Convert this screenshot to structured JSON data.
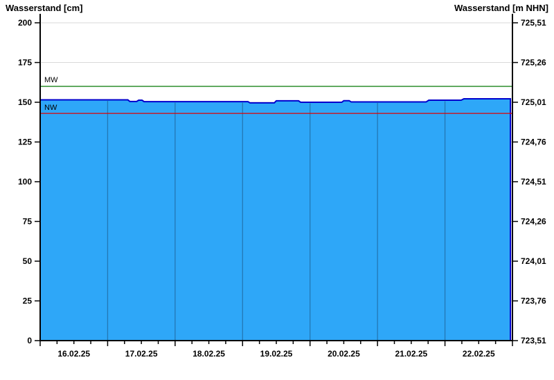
{
  "chart_data": {
    "type": "area",
    "title_left": "Wasserstand [cm]",
    "title_right": "Wasserstand [m NHN]",
    "y_left": {
      "min": 0,
      "max": 200,
      "ticks": [
        200,
        175,
        150,
        125,
        100,
        75,
        50,
        25,
        0
      ]
    },
    "y_right": {
      "ticks": [
        "725,51",
        "725,26",
        "725,01",
        "724,76",
        "724,51",
        "724,26",
        "724,01",
        "723,76",
        "723,51"
      ]
    },
    "x": {
      "day_labels": [
        "16.02.25",
        "17.02.25",
        "18.02.25",
        "19.02.25",
        "20.02.25",
        "21.02.25",
        "22.02.25"
      ],
      "days_total": 7,
      "minor_ticks_per_day": 4
    },
    "series": {
      "name": "Wasserstand",
      "unit": "cm",
      "points_t_days_cm": [
        [
          0.0,
          151.5
        ],
        [
          1.3,
          151.5
        ],
        [
          1.33,
          150.5
        ],
        [
          1.43,
          150.5
        ],
        [
          1.46,
          151.3
        ],
        [
          1.51,
          151.3
        ],
        [
          1.54,
          150.4
        ],
        [
          3.08,
          150.4
        ],
        [
          3.11,
          149.6
        ],
        [
          3.47,
          149.6
        ],
        [
          3.5,
          150.9
        ],
        [
          3.83,
          150.9
        ],
        [
          3.86,
          150.0
        ],
        [
          4.47,
          150.0
        ],
        [
          4.5,
          151.0
        ],
        [
          4.58,
          151.0
        ],
        [
          4.61,
          150.2
        ],
        [
          5.72,
          150.2
        ],
        [
          5.76,
          151.3
        ],
        [
          6.24,
          151.3
        ],
        [
          6.28,
          152.2
        ],
        [
          6.97,
          152.2
        ]
      ]
    },
    "reference_lines": [
      {
        "label": "MW",
        "value_cm": 160,
        "color": "#007700"
      },
      {
        "label": "NW",
        "value_cm": 143,
        "color": "#e00000"
      }
    ],
    "colors": {
      "fill": "#2ea7f8",
      "series_line": "#0000cc",
      "grid_horizontal": "#d9d9d9",
      "grid_vertical_in_fill": "#2377b4",
      "axis": "#000000",
      "text": "#000000"
    },
    "grid": {
      "horizontal": true,
      "vertical_inside_fill_only": true
    }
  }
}
